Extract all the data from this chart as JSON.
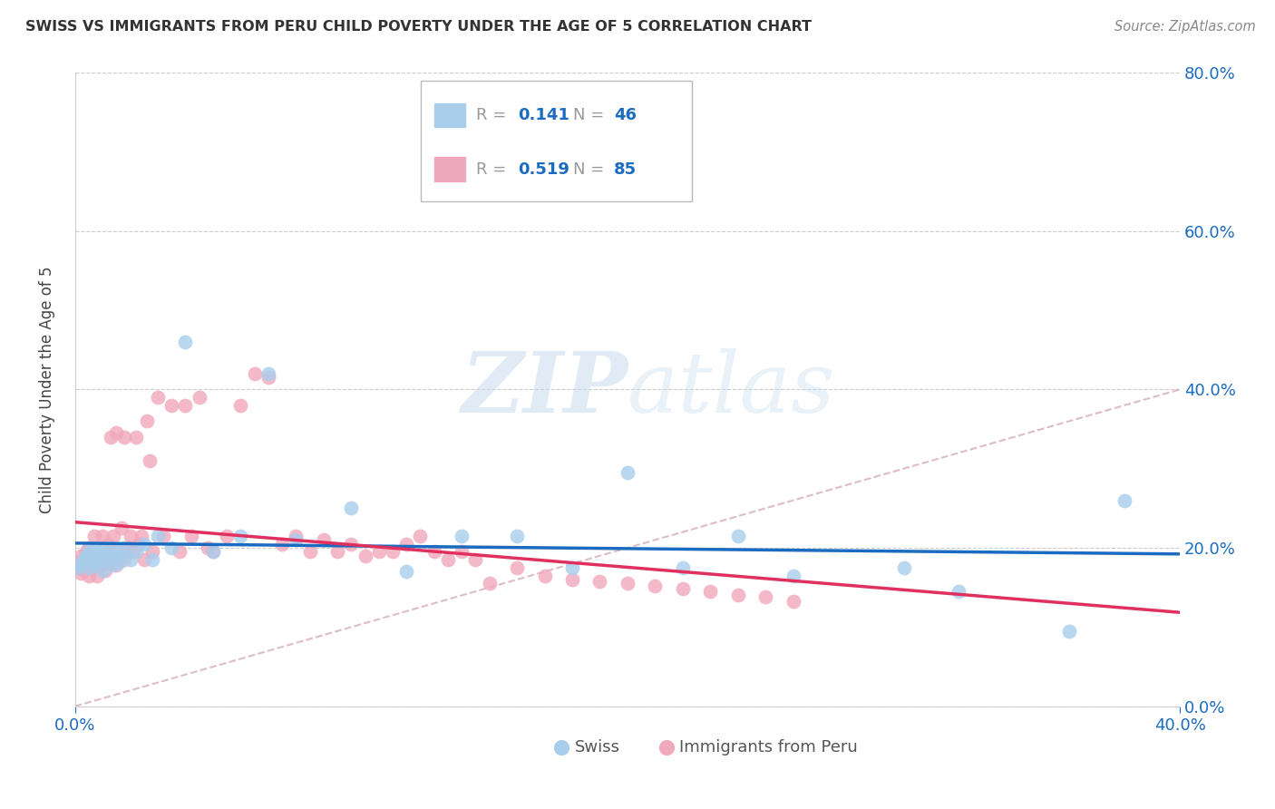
{
  "title": "SWISS VS IMMIGRANTS FROM PERU CHILD POVERTY UNDER THE AGE OF 5 CORRELATION CHART",
  "source": "Source: ZipAtlas.com",
  "ylabel": "Child Poverty Under the Age of 5",
  "xlim": [
    0.0,
    0.4
  ],
  "ylim": [
    0.0,
    0.8
  ],
  "xticks": [
    0.0,
    0.4
  ],
  "yticks": [
    0.0,
    0.2,
    0.4,
    0.6,
    0.8
  ],
  "xtick_labels": [
    "0.0%",
    "40.0%"
  ],
  "ytick_labels_right": [
    "0.0%",
    "20.0%",
    "40.0%",
    "60.0%",
    "80.0%"
  ],
  "swiss_r": "0.141",
  "swiss_n": "46",
  "peru_r": "0.519",
  "peru_n": "85",
  "swiss_fill_color": "#A8CEEC",
  "peru_fill_color": "#F0A8BC",
  "swiss_line_color": "#1B6BC0",
  "peru_line_color": "#E03060",
  "watermark": "ZIPatlas",
  "bg_color": "#FFFFFF",
  "swiss_x": [
    0.001,
    0.002,
    0.003,
    0.004,
    0.005,
    0.005,
    0.006,
    0.007,
    0.007,
    0.008,
    0.008,
    0.009,
    0.01,
    0.01,
    0.011,
    0.012,
    0.013,
    0.014,
    0.015,
    0.016,
    0.017,
    0.018,
    0.02,
    0.022,
    0.025,
    0.028,
    0.03,
    0.035,
    0.04,
    0.05,
    0.06,
    0.07,
    0.08,
    0.1,
    0.12,
    0.14,
    0.16,
    0.18,
    0.2,
    0.22,
    0.24,
    0.26,
    0.3,
    0.32,
    0.36,
    0.38
  ],
  "swiss_y": [
    0.175,
    0.18,
    0.185,
    0.19,
    0.175,
    0.195,
    0.185,
    0.178,
    0.2,
    0.182,
    0.195,
    0.188,
    0.172,
    0.195,
    0.185,
    0.2,
    0.188,
    0.178,
    0.195,
    0.182,
    0.19,
    0.2,
    0.185,
    0.195,
    0.205,
    0.185,
    0.215,
    0.2,
    0.46,
    0.195,
    0.215,
    0.42,
    0.21,
    0.25,
    0.17,
    0.215,
    0.215,
    0.175,
    0.295,
    0.175,
    0.215,
    0.165,
    0.175,
    0.145,
    0.095,
    0.26
  ],
  "peru_x": [
    0.001,
    0.001,
    0.002,
    0.002,
    0.003,
    0.003,
    0.004,
    0.004,
    0.005,
    0.005,
    0.005,
    0.006,
    0.006,
    0.007,
    0.007,
    0.008,
    0.008,
    0.008,
    0.009,
    0.009,
    0.01,
    0.01,
    0.011,
    0.011,
    0.012,
    0.012,
    0.013,
    0.013,
    0.014,
    0.015,
    0.015,
    0.016,
    0.017,
    0.018,
    0.018,
    0.019,
    0.02,
    0.021,
    0.022,
    0.023,
    0.024,
    0.025,
    0.026,
    0.027,
    0.028,
    0.03,
    0.032,
    0.035,
    0.038,
    0.04,
    0.042,
    0.045,
    0.048,
    0.05,
    0.055,
    0.06,
    0.065,
    0.07,
    0.075,
    0.08,
    0.085,
    0.09,
    0.095,
    0.1,
    0.105,
    0.11,
    0.115,
    0.12,
    0.125,
    0.13,
    0.135,
    0.14,
    0.145,
    0.15,
    0.16,
    0.17,
    0.18,
    0.19,
    0.2,
    0.21,
    0.22,
    0.23,
    0.24,
    0.25,
    0.26
  ],
  "peru_y": [
    0.175,
    0.182,
    0.168,
    0.19,
    0.172,
    0.185,
    0.178,
    0.195,
    0.165,
    0.182,
    0.2,
    0.175,
    0.195,
    0.178,
    0.215,
    0.165,
    0.185,
    0.2,
    0.178,
    0.2,
    0.185,
    0.215,
    0.172,
    0.195,
    0.182,
    0.205,
    0.34,
    0.185,
    0.215,
    0.178,
    0.345,
    0.195,
    0.225,
    0.34,
    0.185,
    0.2,
    0.215,
    0.195,
    0.34,
    0.205,
    0.215,
    0.185,
    0.36,
    0.31,
    0.195,
    0.39,
    0.215,
    0.38,
    0.195,
    0.38,
    0.215,
    0.39,
    0.2,
    0.195,
    0.215,
    0.38,
    0.42,
    0.415,
    0.205,
    0.215,
    0.195,
    0.21,
    0.195,
    0.205,
    0.19,
    0.195,
    0.195,
    0.205,
    0.215,
    0.195,
    0.185,
    0.195,
    0.185,
    0.155,
    0.175,
    0.165,
    0.16,
    0.158,
    0.155,
    0.152,
    0.148,
    0.145,
    0.14,
    0.138,
    0.132
  ]
}
